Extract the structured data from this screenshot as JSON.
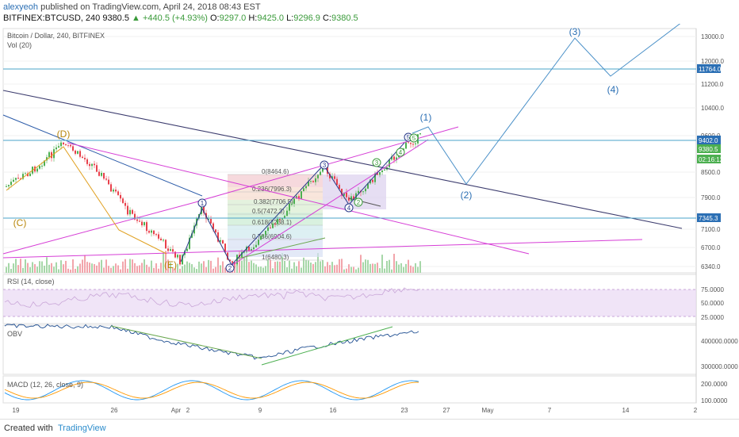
{
  "header": {
    "author": "alexyeoh",
    "published_text": "published on TradingView.com, April 24, 2018 08:43 EST",
    "symbol": "BITFINEX:BTCUSD, 240",
    "price": "9380.5",
    "change": "▲ +440.5 (+4.93%)",
    "open_label": "O:",
    "open": "9297.0",
    "high_label": "H:",
    "high": "9425.0",
    "low_label": "L:",
    "low": "9296.9",
    "close_label": "C:",
    "close": "9380.5"
  },
  "footer": {
    "created_with": "Created with",
    "brand": "TradingView"
  },
  "colors": {
    "up": "#4caf50",
    "down": "#e8404b",
    "rsi": "#9c27b0",
    "obv": "#1f4e91",
    "macd": "#2196f3",
    "signal": "#ff9800",
    "wave_orange": "#b8860b",
    "wave_blue": "#2b6fb4",
    "magenta": "#d63ed6"
  },
  "chart_data": [
    {
      "type": "candlestick",
      "title": "Bitcoin / Dollar, 240, BITFINEX",
      "indicator": "Vol (20)",
      "y_ticks": [
        "13000.0",
        "12000.0",
        "11200.0",
        "10400.0",
        "9600.0",
        "8500.0",
        "7900.0",
        "7100.0",
        "6700.0",
        "6340.0"
      ],
      "price_labels": [
        {
          "text": "11764.0",
          "value": 11764,
          "color": "#2b6fb4"
        },
        {
          "text": "9402.0",
          "value": 9402,
          "color": "#2b6fb4"
        },
        {
          "text": "9380.5",
          "value": 9380.5,
          "color": "#4caf50"
        },
        {
          "text": "02:16:12",
          "value": 9150,
          "color": "#4caf50"
        },
        {
          "text": "7345.3",
          "value": 7345.3,
          "color": "#2b6fb4"
        }
      ],
      "x_ticks": [
        "19",
        "26",
        "Apr",
        "2",
        "9",
        "16",
        "23",
        "27",
        "May",
        "7",
        "14",
        "2"
      ],
      "wave_labels_orange": [
        "(D)",
        "(C)",
        "(E)"
      ],
      "wave_labels_blue_parens": [
        "(1)",
        "(2)",
        "(3)",
        "(4)"
      ],
      "wave_labels_circled": [
        "1",
        "2",
        "3",
        "4",
        "5",
        "2",
        "3",
        "4",
        "5"
      ],
      "fib_levels": [
        {
          "text": "0(8464.6)",
          "value": 8464.6
        },
        {
          "text": "0.236(7996.3)",
          "value": 7996.3
        },
        {
          "text": "0.382(7706.5)",
          "value": 7706.5
        },
        {
          "text": "0.5(7472.3)",
          "value": 7472.3
        },
        {
          "text": "0.618(7238.1)",
          "value": 7238.1
        },
        {
          "text": "0.786(6904.6)",
          "value": 6904.6
        },
        {
          "text": "1(6480.3)",
          "value": 6480.3
        }
      ]
    },
    {
      "type": "line",
      "title": "RSI (14, close)",
      "y_ticks": [
        "75.0000",
        "50.0000",
        "25.0000"
      ]
    },
    {
      "type": "line",
      "title": "OBV",
      "y_ticks": [
        "400000.0000",
        "300000.0000"
      ]
    },
    {
      "type": "line",
      "title": "MACD (12, 26, close, 9)",
      "y_ticks": [
        "200.0000",
        "100.0000"
      ]
    }
  ]
}
